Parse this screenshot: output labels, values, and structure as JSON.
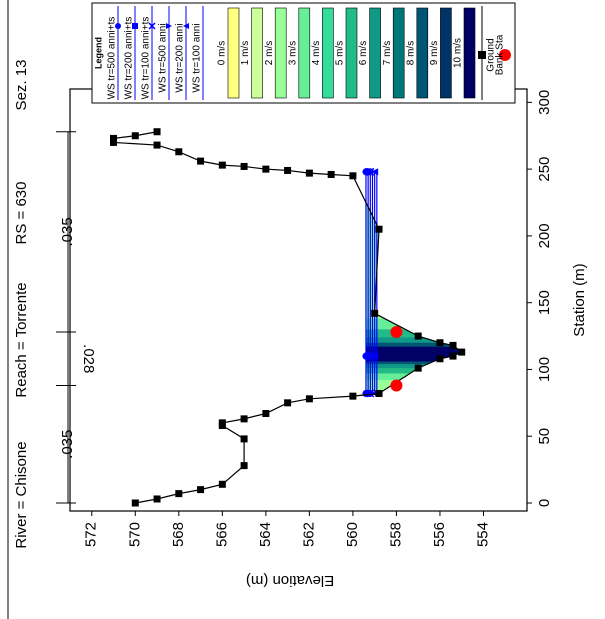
{
  "chart_data": {
    "type": "line",
    "title_river": "River = Chisone",
    "title_reach": "Reach = Torrente",
    "title_rs": "RS = 630",
    "title_sez": "Sez. 13",
    "x_label": "Station (m)",
    "y_label": "Elevation (m)",
    "xlim": [
      -6,
      310
    ],
    "ylim": [
      552,
      573
    ],
    "xticks": [
      0,
      50,
      100,
      150,
      200,
      250,
      300
    ],
    "yticks": [
      554,
      556,
      558,
      560,
      562,
      564,
      566,
      568,
      570,
      572
    ],
    "legend_title": "Legend",
    "manning_n": [
      ".035",
      ".028",
      ".035"
    ],
    "series": [
      {
        "name": "WS tr=500 anni+ts",
        "color": "#0000ff",
        "marker": "circle",
        "x": [
          82,
          110,
          248
        ],
        "values": [
          559.4,
          559.4,
          559.4
        ]
      },
      {
        "name": "WS tr=200 anni+ts",
        "color": "#0000ff",
        "marker": "square",
        "x": [
          82,
          110,
          248
        ],
        "values": [
          559.3,
          559.3,
          559.3
        ]
      },
      {
        "name": "WS tr=100 anni+ts",
        "color": "#0000ff",
        "marker": "cross",
        "x": [
          82,
          110,
          248
        ],
        "values": [
          559.2,
          559.2,
          559.2
        ]
      },
      {
        "name": "WS tr=500 anni",
        "color": "#0000ff",
        "marker": "triangle-down",
        "x": [
          82,
          110,
          248
        ],
        "values": [
          559.1,
          559.1,
          559.1
        ]
      },
      {
        "name": "WS tr=200 anni",
        "color": "#0000ff",
        "marker": "triangle-up",
        "x": [
          82,
          110,
          248
        ],
        "values": [
          559.0,
          559.0,
          559.0
        ]
      },
      {
        "name": "WS tr=100 anni",
        "color": "#0000ff",
        "marker": "none",
        "x": [
          82,
          110,
          248
        ],
        "values": [
          558.9,
          558.9,
          558.9
        ]
      },
      {
        "name": "Ground",
        "color": "#000000",
        "marker": "square",
        "x": [
          0,
          3,
          7,
          10,
          14,
          28,
          48,
          58,
          60,
          63,
          67,
          75,
          78,
          80,
          82,
          101,
          108,
          110,
          113,
          118,
          120,
          125,
          142,
          205,
          245,
          246,
          247,
          249,
          250,
          252,
          253,
          256,
          263,
          268,
          270,
          273,
          275,
          278
        ],
        "values": [
          570,
          569,
          568,
          567,
          566,
          565,
          565,
          566,
          566,
          565,
          564,
          563,
          562,
          560,
          558.8,
          557,
          556,
          555.4,
          555,
          555.4,
          556,
          557,
          559,
          558.8,
          560,
          561,
          562,
          563,
          564,
          565,
          566,
          567,
          568,
          569,
          571,
          571,
          570,
          569
        ]
      },
      {
        "name": "Bank Sta",
        "color": "#ff0000",
        "marker": "dot",
        "x": [
          88,
          128
        ],
        "values": [
          558,
          558
        ]
      }
    ],
    "velocity_legend": [
      {
        "label": "0 m/s",
        "color": "#ffff80"
      },
      {
        "label": "1 m/s",
        "color": "#ccff99"
      },
      {
        "label": "2 m/s",
        "color": "#99ff99"
      },
      {
        "label": "3 m/s",
        "color": "#66ee99"
      },
      {
        "label": "4 m/s",
        "color": "#33dd99"
      },
      {
        "label": "5 m/s",
        "color": "#22bb88"
      },
      {
        "label": "6 m/s",
        "color": "#119988"
      },
      {
        "label": "7 m/s",
        "color": "#007777"
      },
      {
        "label": "8 m/s",
        "color": "#005577"
      },
      {
        "label": "9 m/s",
        "color": "#003366"
      },
      {
        "label": "10 m/s",
        "color": "#000066"
      }
    ]
  }
}
